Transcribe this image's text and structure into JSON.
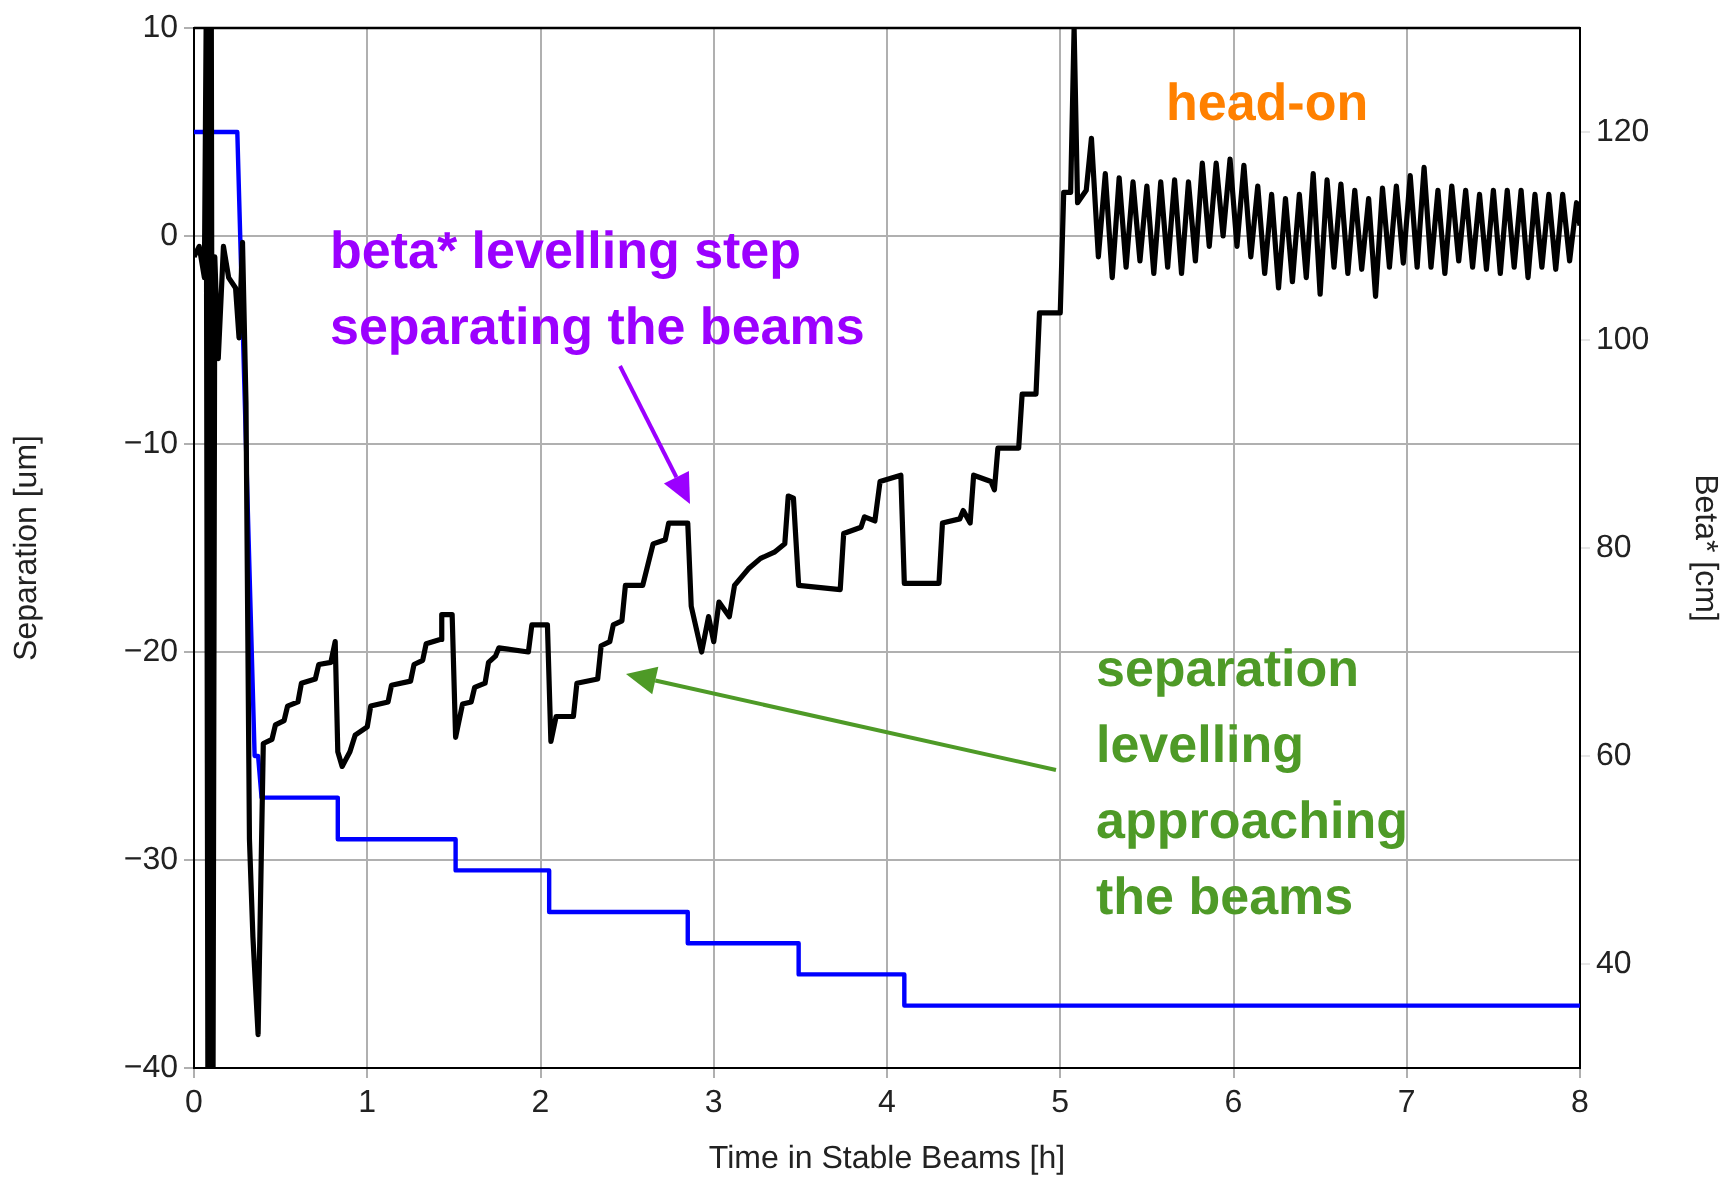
{
  "chart_data": {
    "type": "line",
    "xlabel": "Time in Stable Beams [h]",
    "ylabel": "Separation [um]",
    "y2label": "Beta* [cm]",
    "xlim": [
      0,
      8
    ],
    "xticks": [
      0,
      1,
      2,
      3,
      4,
      5,
      6,
      7,
      8
    ],
    "ylim": [
      -40,
      10
    ],
    "yticks": [
      {
        "value": -40,
        "label": "−40"
      },
      {
        "value": -30,
        "label": "−30"
      },
      {
        "value": -20,
        "label": "−20"
      },
      {
        "value": -10,
        "label": "−10"
      },
      0,
      10
    ],
    "y2lim": [
      30,
      130
    ],
    "y2ticks": [
      40,
      60,
      80,
      100,
      120
    ],
    "grid": true,
    "series": [
      {
        "color": "#000000",
        "x": [
          0,
          0.03,
          0.06,
          0.07,
          0.08,
          0.1,
          0.11,
          0.12,
          0.14,
          0.17,
          0.2,
          0.24,
          0.26,
          0.28,
          0.3,
          0.32,
          0.34,
          0.37,
          0.4,
          0.45,
          0.47,
          0.52,
          0.54,
          0.6,
          0.62,
          0.7,
          0.72,
          0.79,
          0.815,
          0.83,
          0.855,
          0.9,
          0.93,
          1.0,
          1.02,
          1.12,
          1.14,
          1.25,
          1.27,
          1.32,
          1.34,
          1.42,
          1.43,
          1.49,
          1.51,
          1.55,
          1.6,
          1.62,
          1.68,
          1.7,
          1.74,
          1.76,
          1.93,
          1.95,
          2.04,
          2.06,
          2.09,
          2.19,
          2.21,
          2.33,
          2.35,
          2.4,
          2.42,
          2.47,
          2.49,
          2.59,
          2.62,
          2.65,
          2.72,
          2.74,
          2.85,
          2.87,
          2.93,
          2.97,
          3.0,
          3.03,
          3.09,
          3.12,
          3.2,
          3.27,
          3.35,
          3.41,
          3.43,
          3.46,
          3.49,
          3.73,
          3.75,
          3.85,
          3.87,
          3.93,
          3.96,
          4.08,
          4.1,
          4.3,
          4.32,
          4.42,
          4.44,
          4.48,
          4.5,
          4.6,
          4.62,
          4.64,
          4.76,
          4.78,
          4.86,
          4.88,
          5.0,
          5.02,
          5.06,
          5.08,
          5.1,
          5.15,
          5.18,
          5.22,
          5.26,
          5.3,
          5.34,
          5.38,
          5.42,
          5.46,
          5.5,
          5.54,
          5.58,
          5.62,
          5.66,
          5.7,
          5.74,
          5.78,
          5.82,
          5.86,
          5.9,
          5.94,
          5.98,
          6.02,
          6.06,
          6.1,
          6.14,
          6.18,
          6.22,
          6.26,
          6.3,
          6.34,
          6.38,
          6.42,
          6.46,
          6.5,
          6.54,
          6.58,
          6.62,
          6.66,
          6.7,
          6.74,
          6.78,
          6.82,
          6.86,
          6.9,
          6.94,
          6.98,
          7.02,
          7.06,
          7.1,
          7.14,
          7.18,
          7.22,
          7.26,
          7.3,
          7.34,
          7.38,
          7.42,
          7.46,
          7.5,
          7.54,
          7.58,
          7.62,
          7.66,
          7.7,
          7.74,
          7.78,
          7.82,
          7.86,
          7.9,
          7.94,
          7.98,
          8.0
        ],
        "values": [
          -1,
          -0.5,
          -2,
          10,
          -40,
          10,
          -40,
          -1,
          -5.9,
          -0.5,
          -2,
          -2.5,
          -4.9,
          -0.3,
          -8,
          -29,
          -33.7,
          -38.4,
          -24.4,
          -24.2,
          -23.5,
          -23.3,
          -22.6,
          -22.4,
          -21.5,
          -21.3,
          -20.6,
          -20.5,
          -19.5,
          -24.8,
          -25.5,
          -24.8,
          -24.0,
          -23.6,
          -22.6,
          -22.4,
          -21.6,
          -21.4,
          -20.6,
          -20.4,
          -19.6,
          -19.4,
          -18.2,
          -18.2,
          -24.1,
          -22.5,
          -22.4,
          -21.7,
          -21.5,
          -20.5,
          -20.2,
          -19.8,
          -20.0,
          -18.7,
          -18.7,
          -24.3,
          -23.1,
          -23.1,
          -21.5,
          -21.3,
          -19.7,
          -19.5,
          -18.7,
          -18.5,
          -16.8,
          -16.8,
          -15.8,
          -14.8,
          -14.6,
          -13.8,
          -13.8,
          -17.8,
          -20,
          -18.3,
          -19.5,
          -17.6,
          -18.3,
          -16.8,
          -16.0,
          -15.5,
          -15.2,
          -14.8,
          -12.5,
          -12.6,
          -16.8,
          -17,
          -14.3,
          -14.0,
          -13.5,
          -13.7,
          -11.8,
          -11.5,
          -16.7,
          -16.7,
          -13.8,
          -13.6,
          -13.2,
          -13.8,
          -11.5,
          -11.8,
          -12.2,
          -10.2,
          -10.2,
          -7.6,
          -7.6,
          -3.7,
          -3.7,
          2.1,
          2.1,
          10,
          1.6,
          2.2,
          4.7,
          -1.0,
          3.0,
          -2.0,
          2.8,
          -1.5,
          2.6,
          -1.2,
          2.4,
          -1.8,
          2.6,
          -1.5,
          2.7,
          -1.8,
          2.6,
          -1.2,
          3.5,
          -0.5,
          3.5,
          0.0,
          3.7,
          -0.5,
          3.4,
          -1.0,
          2.4,
          -1.8,
          2.0,
          -2.5,
          1.8,
          -2.2,
          2.0,
          -2.0,
          3.0,
          -2.8,
          2.7,
          -1.5,
          2.5,
          -1.8,
          2.2,
          -1.6,
          1.8,
          -2.9,
          2.3,
          -1.5,
          2.4,
          -1.3,
          2.9,
          -1.5,
          3.3,
          -1.5,
          2.2,
          -1.8,
          2.4,
          -1.2,
          2.2,
          -1.5,
          2.0,
          -1.6,
          2.2,
          -1.8,
          2.2,
          -1.5,
          2.2,
          -2.0,
          2.0,
          -1.5,
          2.0,
          -1.6,
          2.0,
          -1.2,
          1.6,
          0.5
        ]
      },
      {
        "color": "#0000ff",
        "axis": "y2",
        "x": [
          0,
          0.25,
          0.35,
          0.37,
          0.39,
          0.83,
          0.83,
          1.51,
          1.51,
          2.05,
          2.05,
          2.85,
          2.85,
          3.49,
          3.49,
          4.1,
          4.1,
          8
        ],
        "values": [
          120,
          120,
          60,
          60,
          56,
          56,
          52,
          52,
          49,
          49,
          45,
          45,
          42,
          42,
          39,
          39,
          36,
          36
        ]
      }
    ],
    "annotations": [
      "beta* levelling step separating the beams",
      "separation levelling approaching the beams",
      "head-on"
    ]
  }
}
